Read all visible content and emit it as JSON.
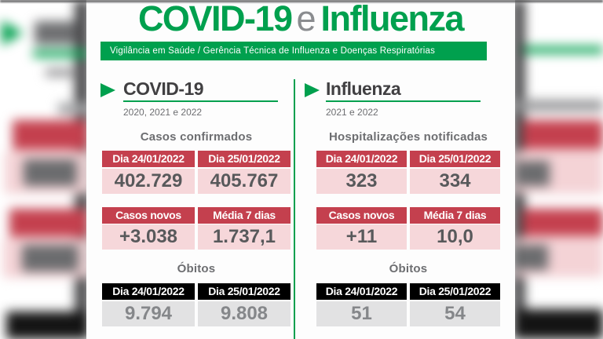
{
  "colors": {
    "green": "#00A04E",
    "red": "#C4404E",
    "pink": "#F6D7DA",
    "black": "#000000",
    "gray_cell": "#E2E2E3",
    "value_text": "#58595B",
    "muted_text": "#6D6E71"
  },
  "header": {
    "title_part1": "COVID-19",
    "title_connector": "e",
    "title_part2": "Influenza",
    "banner": "Vigilância em Saúde / Gerência Técnica de Influenza e Doenças Respiratórias"
  },
  "chart_data": [
    {
      "type": "table",
      "section": "COVID-19",
      "period": "2020, 2021 e 2022",
      "blocks": [
        {
          "title": "Casos confirmados",
          "columns": [
            "Dia 24/01/2022",
            "Dia 25/01/2022"
          ],
          "values": [
            "402.729",
            "405.767"
          ]
        },
        {
          "title": "",
          "columns": [
            "Casos novos",
            "Média 7 dias"
          ],
          "values": [
            "+3.038",
            "1.737,1"
          ]
        },
        {
          "title": "Óbitos",
          "columns": [
            "Dia 24/01/2022",
            "Dia 25/01/2022"
          ],
          "values": [
            "9.794",
            "9.808"
          ]
        }
      ]
    },
    {
      "type": "table",
      "section": "Influenza",
      "period": "2021 e 2022",
      "blocks": [
        {
          "title": "Hospitalizações notificadas",
          "columns": [
            "Dia 24/01/2022",
            "Dia 25/01/2022"
          ],
          "values": [
            "323",
            "334"
          ]
        },
        {
          "title": "",
          "columns": [
            "Casos novos",
            "Média 7 dias"
          ],
          "values": [
            "+11",
            "10,0"
          ]
        },
        {
          "title": "Óbitos",
          "columns": [
            "Dia 24/01/2022",
            "Dia 25/01/2022"
          ],
          "values": [
            "51",
            "54"
          ]
        }
      ]
    }
  ]
}
